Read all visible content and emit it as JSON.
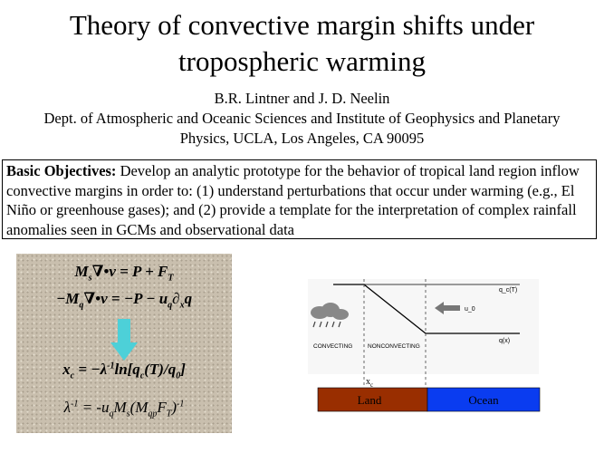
{
  "title_line1": "Theory of convective margin shifts under",
  "title_line2": "tropospheric warming",
  "authors": "B.R. Lintner and J. D. Neelin",
  "affiliation_line1": "Dept. of Atmospheric and Oceanic Sciences and Institute of Geophysics and Planetary",
  "affiliation_line2": "Physics, UCLA, Los Angeles, CA  90095",
  "objectives_heading": "Basic Objectives:",
  "objectives_text": "  Develop an analytic prototype for  the behavior of tropical land region inflow convective margins in order to:  (1) understand perturbations that occur under warming (e.g., El Niño or greenhouse gases); and (2) provide a template for the interpretation of complex rainfall anomalies seen in GCMs and observational data",
  "equations": {
    "eq1": "M_s∇•v = P + F_T",
    "eq2": "−M_q∇•v = −P − u_q∂_x q",
    "eq3": "x_c = −λ^{-1} ln[q_c(T)/q_0]",
    "eq4": "λ^{-1} = -u_q M_s (M_qp F_T)^{-1}"
  },
  "diagram": {
    "qc_label": "q_c(T)",
    "u0_label": "u_0",
    "qx_label": "q(x)",
    "convecting": "CONVECTING",
    "nonconvecting": "NONCONVECTING",
    "xc_label": "x_c",
    "land_label": "Land",
    "ocean_label": "Ocean",
    "land_color": "#992e00",
    "ocean_color": "#0a3cf0",
    "arrow_color": "#4dd0d8"
  }
}
